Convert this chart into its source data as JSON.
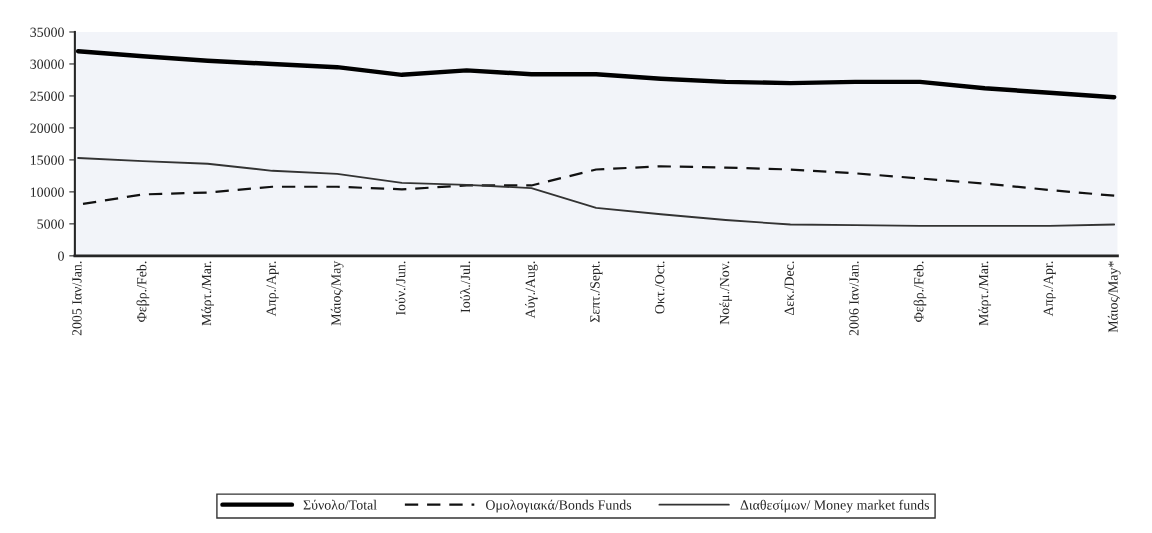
{
  "chart_data": {
    "type": "line",
    "categories": [
      "2005 Ιαν/Jan.",
      "Φεβρ./Feb.",
      "Μάρτ./Mar.",
      "Απρ./Apr.",
      "Μάιος/May",
      "Ιούν./Jun.",
      "Ιούλ./Jul.",
      "Αύγ./Aug.",
      "Σεπτ./Sept.",
      "Οκτ./Oct.",
      "Νοέμ./Nov.",
      "Δεκ./Dec.",
      "2006 Ιαν/Jan.",
      "Φεβρ./Feb.",
      "Μάρτ./Mar.",
      "Απρ./Apr.",
      "Μάιος/May*"
    ],
    "series": [
      {
        "name": "Σύνολο/Total",
        "color": "#000000",
        "line_style": "solid",
        "values": [
          32000,
          31200,
          30500,
          30000,
          29500,
          28300,
          29000,
          28400,
          28400,
          27700,
          27200,
          27000,
          27200,
          27200,
          26200,
          25500,
          24800
        ]
      },
      {
        "name": "Ομολογιακά/Bonds Funds",
        "color": "#111111",
        "line_style": "dashed",
        "values": [
          8000,
          9600,
          9900,
          10800,
          10800,
          10400,
          11000,
          11000,
          13500,
          14000,
          13800,
          13500,
          12900,
          12100,
          11300,
          10300,
          9400
        ]
      },
      {
        "name": "Διαθεσίμων/ Money market funds",
        "color": "#333333",
        "line_style": "solid",
        "values": [
          15300,
          14800,
          14400,
          13300,
          12800,
          11400,
          11100,
          10600,
          7500,
          6500,
          5600,
          4900,
          4800,
          4700,
          4700,
          4700,
          4900
        ]
      }
    ],
    "ylim": [
      0,
      35000
    ],
    "yticks": [
      0,
      5000,
      10000,
      15000,
      20000,
      25000,
      30000,
      35000
    ],
    "grid": false,
    "legend": "bottom",
    "marker": "none"
  }
}
